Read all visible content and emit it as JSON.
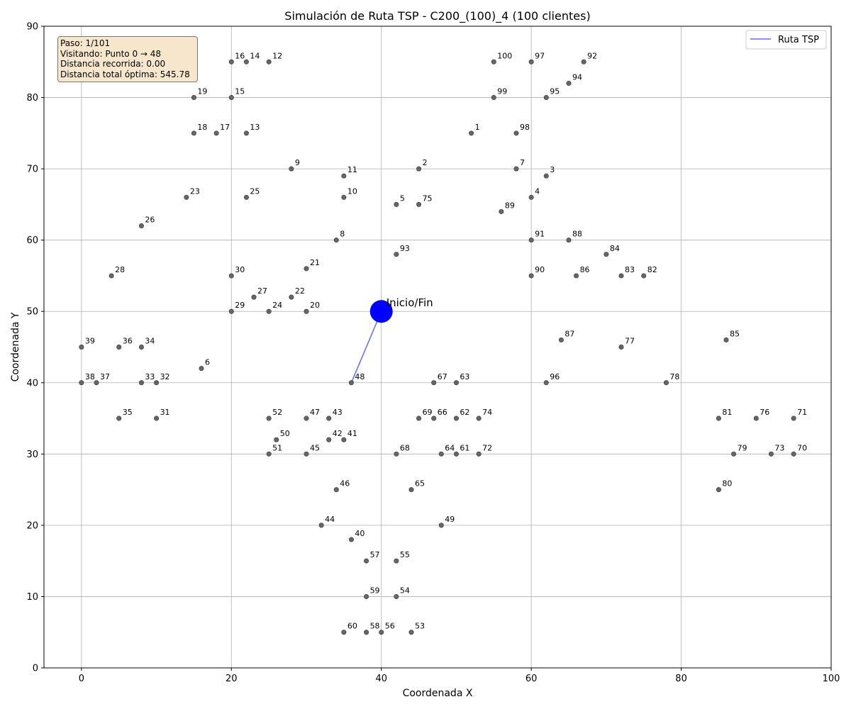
{
  "chart_data": {
    "type": "scatter",
    "title": "Simulación de Ruta TSP - C200_(100)_4 (100 clientes)",
    "xlabel": "Coordenada X",
    "ylabel": "Coordenada Y",
    "xlim": [
      -5,
      100
    ],
    "ylim": [
      0,
      90
    ],
    "xticks": [
      0,
      20,
      40,
      60,
      80,
      100
    ],
    "yticks": [
      0,
      10,
      20,
      30,
      40,
      50,
      60,
      70,
      80,
      90
    ],
    "grid": true,
    "legend": {
      "placement": "top-right",
      "entries": [
        "Ruta TSP"
      ]
    },
    "depot": {
      "x": 40,
      "y": 50,
      "label": "Inicio/Fin"
    },
    "route": [
      [
        40,
        50
      ],
      [
        36,
        40
      ]
    ],
    "colors": {
      "points": "#666666",
      "depot": "#0000ff",
      "route": "#6666ff",
      "grid": "#b0b0b0"
    },
    "points": [
      {
        "id": "1",
        "x": 52,
        "y": 75
      },
      {
        "id": "2",
        "x": 45,
        "y": 70
      },
      {
        "id": "3",
        "x": 62,
        "y": 69
      },
      {
        "id": "4",
        "x": 60,
        "y": 66
      },
      {
        "id": "5",
        "x": 42,
        "y": 65
      },
      {
        "id": "6",
        "x": 16,
        "y": 42
      },
      {
        "id": "7",
        "x": 58,
        "y": 70
      },
      {
        "id": "8",
        "x": 34,
        "y": 60
      },
      {
        "id": "9",
        "x": 28,
        "y": 70
      },
      {
        "id": "10",
        "x": 35,
        "y": 66
      },
      {
        "id": "11",
        "x": 35,
        "y": 69
      },
      {
        "id": "12",
        "x": 25,
        "y": 85
      },
      {
        "id": "13",
        "x": 22,
        "y": 75
      },
      {
        "id": "14",
        "x": 22,
        "y": 85
      },
      {
        "id": "15",
        "x": 20,
        "y": 80
      },
      {
        "id": "16",
        "x": 20,
        "y": 85
      },
      {
        "id": "17",
        "x": 18,
        "y": 75
      },
      {
        "id": "18",
        "x": 15,
        "y": 75
      },
      {
        "id": "19",
        "x": 15,
        "y": 80
      },
      {
        "id": "20",
        "x": 30,
        "y": 50
      },
      {
        "id": "21",
        "x": 30,
        "y": 56
      },
      {
        "id": "22",
        "x": 28,
        "y": 52
      },
      {
        "id": "23",
        "x": 14,
        "y": 66
      },
      {
        "id": "24",
        "x": 25,
        "y": 50
      },
      {
        "id": "25",
        "x": 22,
        "y": 66
      },
      {
        "id": "26",
        "x": 8,
        "y": 62
      },
      {
        "id": "27",
        "x": 23,
        "y": 52
      },
      {
        "id": "28",
        "x": 4,
        "y": 55
      },
      {
        "id": "29",
        "x": 20,
        "y": 50
      },
      {
        "id": "30",
        "x": 20,
        "y": 55
      },
      {
        "id": "31",
        "x": 10,
        "y": 35
      },
      {
        "id": "32",
        "x": 10,
        "y": 40
      },
      {
        "id": "33",
        "x": 8,
        "y": 40
      },
      {
        "id": "34",
        "x": 8,
        "y": 45
      },
      {
        "id": "35",
        "x": 5,
        "y": 35
      },
      {
        "id": "36",
        "x": 5,
        "y": 45
      },
      {
        "id": "37",
        "x": 2,
        "y": 40
      },
      {
        "id": "38",
        "x": 0,
        "y": 40
      },
      {
        "id": "39",
        "x": 0,
        "y": 45
      },
      {
        "id": "40",
        "x": 36,
        "y": 18
      },
      {
        "id": "41",
        "x": 35,
        "y": 32
      },
      {
        "id": "42",
        "x": 33,
        "y": 32
      },
      {
        "id": "43",
        "x": 33,
        "y": 35
      },
      {
        "id": "44",
        "x": 32,
        "y": 20
      },
      {
        "id": "45",
        "x": 30,
        "y": 30
      },
      {
        "id": "46",
        "x": 34,
        "y": 25
      },
      {
        "id": "47",
        "x": 30,
        "y": 35
      },
      {
        "id": "48",
        "x": 36,
        "y": 40
      },
      {
        "id": "49",
        "x": 48,
        "y": 20
      },
      {
        "id": "50",
        "x": 26,
        "y": 32
      },
      {
        "id": "51",
        "x": 25,
        "y": 30
      },
      {
        "id": "52",
        "x": 25,
        "y": 35
      },
      {
        "id": "53",
        "x": 44,
        "y": 5
      },
      {
        "id": "54",
        "x": 42,
        "y": 10
      },
      {
        "id": "55",
        "x": 42,
        "y": 15
      },
      {
        "id": "56",
        "x": 40,
        "y": 5
      },
      {
        "id": "57",
        "x": 38,
        "y": 15
      },
      {
        "id": "58",
        "x": 38,
        "y": 5
      },
      {
        "id": "59",
        "x": 38,
        "y": 10
      },
      {
        "id": "60",
        "x": 35,
        "y": 5
      },
      {
        "id": "61",
        "x": 50,
        "y": 30
      },
      {
        "id": "62",
        "x": 50,
        "y": 35
      },
      {
        "id": "63",
        "x": 50,
        "y": 40
      },
      {
        "id": "64",
        "x": 48,
        "y": 30
      },
      {
        "id": "65",
        "x": 44,
        "y": 25
      },
      {
        "id": "66",
        "x": 47,
        "y": 35
      },
      {
        "id": "67",
        "x": 47,
        "y": 40
      },
      {
        "id": "68",
        "x": 42,
        "y": 30
      },
      {
        "id": "69",
        "x": 45,
        "y": 35
      },
      {
        "id": "70",
        "x": 95,
        "y": 30
      },
      {
        "id": "71",
        "x": 95,
        "y": 35
      },
      {
        "id": "72",
        "x": 53,
        "y": 30
      },
      {
        "id": "73",
        "x": 92,
        "y": 30
      },
      {
        "id": "74",
        "x": 53,
        "y": 35
      },
      {
        "id": "75",
        "x": 45,
        "y": 65
      },
      {
        "id": "76",
        "x": 90,
        "y": 35
      },
      {
        "id": "77",
        "x": 72,
        "y": 45
      },
      {
        "id": "78",
        "x": 78,
        "y": 40
      },
      {
        "id": "79",
        "x": 87,
        "y": 30
      },
      {
        "id": "80",
        "x": 85,
        "y": 25
      },
      {
        "id": "81",
        "x": 85,
        "y": 35
      },
      {
        "id": "82",
        "x": 75,
        "y": 55
      },
      {
        "id": "83",
        "x": 72,
        "y": 55
      },
      {
        "id": "84",
        "x": 70,
        "y": 58
      },
      {
        "id": "85",
        "x": 86,
        "y": 46
      },
      {
        "id": "86",
        "x": 66,
        "y": 55
      },
      {
        "id": "87",
        "x": 64,
        "y": 46
      },
      {
        "id": "88",
        "x": 65,
        "y": 60
      },
      {
        "id": "89",
        "x": 56,
        "y": 64
      },
      {
        "id": "90",
        "x": 60,
        "y": 55
      },
      {
        "id": "91",
        "x": 60,
        "y": 60
      },
      {
        "id": "92",
        "x": 67,
        "y": 85
      },
      {
        "id": "93",
        "x": 42,
        "y": 58
      },
      {
        "id": "94",
        "x": 65,
        "y": 82
      },
      {
        "id": "95",
        "x": 62,
        "y": 80
      },
      {
        "id": "96",
        "x": 62,
        "y": 40
      },
      {
        "id": "97",
        "x": 60,
        "y": 85
      },
      {
        "id": "98",
        "x": 58,
        "y": 75
      },
      {
        "id": "99",
        "x": 55,
        "y": 80
      },
      {
        "id": "100",
        "x": 55,
        "y": 85
      }
    ],
    "info_box": {
      "step": "Paso: 1/101",
      "visiting": "Visitando: Punto 0 → 48",
      "distance_traveled": "Distancia recorrida: 0.00",
      "optimal_total": "Distancia total óptima: 545.78"
    }
  }
}
